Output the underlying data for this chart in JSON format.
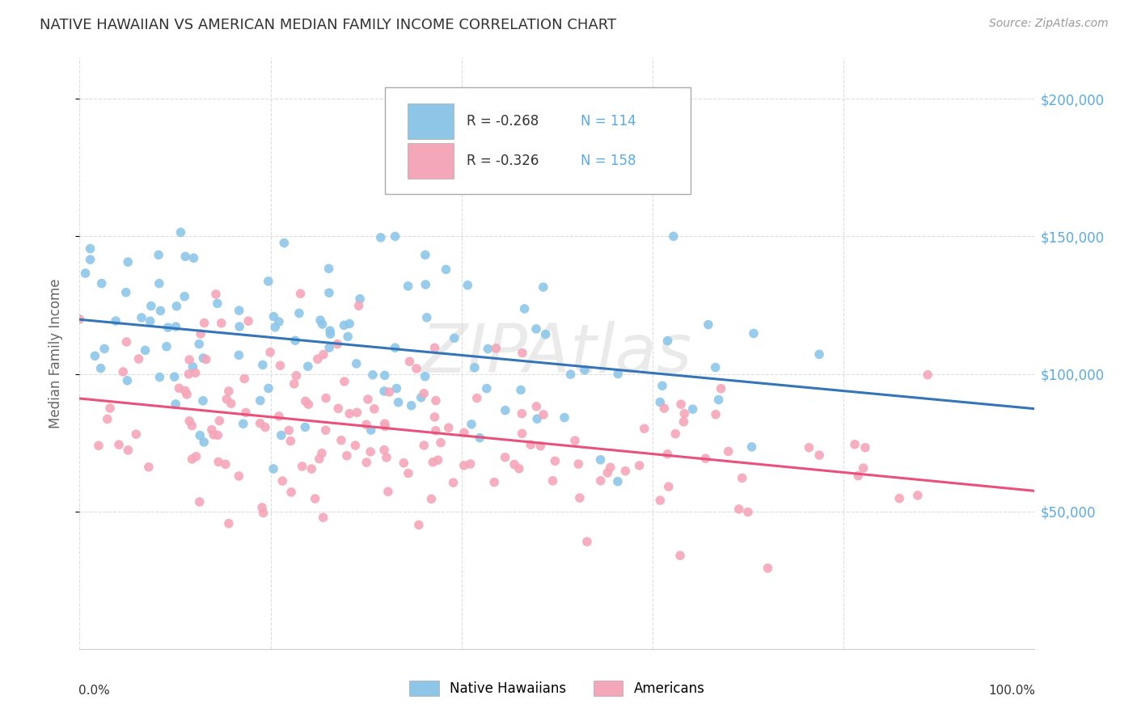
{
  "title": "NATIVE HAWAIIAN VS AMERICAN MEDIAN FAMILY INCOME CORRELATION CHART",
  "source": "Source: ZipAtlas.com",
  "ylabel": "Median Family Income",
  "ytick_labels": [
    "$50,000",
    "$100,000",
    "$150,000",
    "$200,000"
  ],
  "ytick_values": [
    50000,
    100000,
    150000,
    200000
  ],
  "ylim": [
    0,
    215000
  ],
  "xlim": [
    0.0,
    1.0
  ],
  "blue_color": "#8ec6e8",
  "pink_color": "#f4a7b9",
  "blue_line_color": "#3475b8",
  "pink_line_color": "#e8517a",
  "blue_r": "-0.268",
  "blue_n": "114",
  "pink_r": "-0.326",
  "pink_n": "158",
  "legend_label_blue": "Native Hawaiians",
  "legend_label_pink": "Americans",
  "watermark": "ZIPAtlas",
  "ytick_color": "#5aabde",
  "title_color": "#333333",
  "source_color": "#999999",
  "ylabel_color": "#666666",
  "grid_color": "#dddddd",
  "xtick_color": "#333333"
}
